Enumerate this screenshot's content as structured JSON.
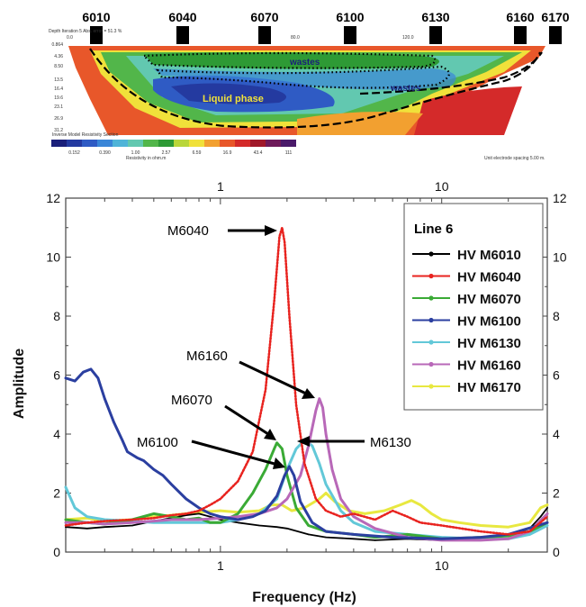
{
  "section": {
    "electrode_labels": [
      "6010",
      "6040",
      "6070",
      "6100",
      "6130",
      "6160",
      "6170"
    ],
    "header_small": "Depth   Iteration 5 Abs. error = 51.3 %",
    "x_ticks": [
      "0.0",
      "80.0",
      "120.0"
    ],
    "depth_ticks": [
      "0.864",
      "4.36",
      "8.50",
      "13.5",
      "16.4",
      "19.6",
      "23.1",
      "26.9",
      "31.2"
    ],
    "zone_labels": {
      "wastes_upper": "wastes",
      "wastes_lower": "wastes",
      "liquid": "Liquid phase"
    },
    "legend_title": "Inverse Model Resistivity Section",
    "legend_values": [
      "0.152",
      "0.390",
      "1.00",
      "2.57",
      "6.59",
      "16.9",
      "43.4",
      "111"
    ],
    "legend_units": "Resistivity in ohm.m",
    "spacing_note": "Unit electrode spacing 5.00 m.",
    "palette": [
      "#1a1f7a",
      "#243aa0",
      "#2f5bc4",
      "#3a86d8",
      "#4fb4d8",
      "#62c8b0",
      "#52b64a",
      "#2e9a35",
      "#b9d63a",
      "#f0e13a",
      "#f2a030",
      "#e8572a",
      "#d42a2a",
      "#a0182a",
      "#6e1a5a",
      "#4a1a6a"
    ]
  },
  "plot": {
    "xlabel": "Frequency (Hz)",
    "ylabel": "Amplitude",
    "y_ticks": [
      "0",
      "2",
      "4",
      "6",
      "8",
      "10",
      "12"
    ],
    "x_ticks_bottom": [
      "1",
      "10"
    ],
    "x_ticks_top": [
      "1",
      "10"
    ],
    "legend_title": "Line 6",
    "annotations": [
      "M6040",
      "M6160",
      "M6070",
      "M6100",
      "M6130"
    ]
  },
  "chart_data": {
    "type": "line",
    "x_scale": "log",
    "xlim": [
      0.2,
      30
    ],
    "ylim": [
      0,
      12
    ],
    "xlabel": "Frequency (Hz)",
    "ylabel": "Amplitude",
    "grid": false,
    "legend_position": "top-right",
    "legend_title": "Line 6",
    "series": [
      {
        "name": "HV M6010",
        "color": "#000000",
        "points": [
          [
            0.2,
            0.85
          ],
          [
            0.25,
            0.8
          ],
          [
            0.3,
            0.85
          ],
          [
            0.4,
            0.9
          ],
          [
            0.5,
            1.05
          ],
          [
            0.6,
            1.15
          ],
          [
            0.7,
            1.25
          ],
          [
            0.8,
            1.3
          ],
          [
            0.9,
            1.2
          ],
          [
            1.0,
            1.1
          ],
          [
            1.2,
            1.0
          ],
          [
            1.5,
            0.9
          ],
          [
            1.8,
            0.85
          ],
          [
            2.0,
            0.8
          ],
          [
            2.5,
            0.6
          ],
          [
            3.0,
            0.5
          ],
          [
            4.0,
            0.45
          ],
          [
            5.0,
            0.4
          ],
          [
            7.0,
            0.45
          ],
          [
            10,
            0.4
          ],
          [
            15,
            0.45
          ],
          [
            20,
            0.55
          ],
          [
            25,
            0.8
          ],
          [
            28,
            1.2
          ],
          [
            30,
            1.5
          ]
        ]
      },
      {
        "name": "HV M6040",
        "color": "#e8231f",
        "points": [
          [
            0.2,
            0.9
          ],
          [
            0.25,
            1.0
          ],
          [
            0.3,
            1.05
          ],
          [
            0.4,
            1.1
          ],
          [
            0.5,
            1.15
          ],
          [
            0.6,
            1.25
          ],
          [
            0.7,
            1.3
          ],
          [
            0.8,
            1.4
          ],
          [
            0.9,
            1.6
          ],
          [
            1.0,
            1.8
          ],
          [
            1.2,
            2.4
          ],
          [
            1.4,
            3.4
          ],
          [
            1.6,
            5.5
          ],
          [
            1.75,
            8.5
          ],
          [
            1.85,
            10.7
          ],
          [
            1.9,
            11.0
          ],
          [
            1.95,
            10.5
          ],
          [
            2.05,
            8.0
          ],
          [
            2.2,
            5.0
          ],
          [
            2.4,
            3.0
          ],
          [
            2.7,
            1.8
          ],
          [
            3.0,
            1.4
          ],
          [
            3.5,
            1.2
          ],
          [
            4.0,
            1.3
          ],
          [
            5.0,
            1.1
          ],
          [
            6.0,
            1.4
          ],
          [
            7.0,
            1.2
          ],
          [
            8.0,
            1.0
          ],
          [
            10,
            0.9
          ],
          [
            15,
            0.7
          ],
          [
            20,
            0.6
          ],
          [
            25,
            0.7
          ],
          [
            30,
            1.2
          ]
        ]
      },
      {
        "name": "HV M6070",
        "color": "#3aaa35",
        "points": [
          [
            0.2,
            1.1
          ],
          [
            0.25,
            1.0
          ],
          [
            0.3,
            0.95
          ],
          [
            0.4,
            1.1
          ],
          [
            0.5,
            1.3
          ],
          [
            0.6,
            1.2
          ],
          [
            0.7,
            1.1
          ],
          [
            0.8,
            1.15
          ],
          [
            0.9,
            1.0
          ],
          [
            1.0,
            1.0
          ],
          [
            1.2,
            1.3
          ],
          [
            1.4,
            2.0
          ],
          [
            1.6,
            2.8
          ],
          [
            1.75,
            3.5
          ],
          [
            1.8,
            3.7
          ],
          [
            1.9,
            3.5
          ],
          [
            2.0,
            2.6
          ],
          [
            2.2,
            1.5
          ],
          [
            2.5,
            0.9
          ],
          [
            3.0,
            0.7
          ],
          [
            4.0,
            0.6
          ],
          [
            5.0,
            0.5
          ],
          [
            7.0,
            0.6
          ],
          [
            10,
            0.45
          ],
          [
            15,
            0.5
          ],
          [
            20,
            0.55
          ],
          [
            25,
            0.7
          ],
          [
            30,
            1.0
          ]
        ]
      },
      {
        "name": "HV M6100",
        "color": "#2b3fa0",
        "points": [
          [
            0.2,
            5.9
          ],
          [
            0.22,
            5.8
          ],
          [
            0.24,
            6.1
          ],
          [
            0.26,
            6.2
          ],
          [
            0.28,
            5.9
          ],
          [
            0.3,
            5.2
          ],
          [
            0.33,
            4.4
          ],
          [
            0.36,
            3.8
          ],
          [
            0.38,
            3.4
          ],
          [
            0.42,
            3.2
          ],
          [
            0.45,
            3.1
          ],
          [
            0.5,
            2.8
          ],
          [
            0.55,
            2.6
          ],
          [
            0.6,
            2.3
          ],
          [
            0.7,
            1.8
          ],
          [
            0.8,
            1.5
          ],
          [
            0.9,
            1.3
          ],
          [
            1.0,
            1.2
          ],
          [
            1.2,
            1.1
          ],
          [
            1.4,
            1.2
          ],
          [
            1.6,
            1.4
          ],
          [
            1.8,
            1.9
          ],
          [
            1.95,
            2.6
          ],
          [
            2.05,
            2.9
          ],
          [
            2.15,
            2.6
          ],
          [
            2.3,
            1.7
          ],
          [
            2.6,
            1.0
          ],
          [
            3.0,
            0.7
          ],
          [
            4.0,
            0.6
          ],
          [
            6.0,
            0.5
          ],
          [
            10,
            0.45
          ],
          [
            15,
            0.5
          ],
          [
            20,
            0.6
          ],
          [
            30,
            1.0
          ]
        ]
      },
      {
        "name": "HV M6130",
        "color": "#62c8d8",
        "points": [
          [
            0.2,
            2.2
          ],
          [
            0.22,
            1.5
          ],
          [
            0.25,
            1.2
          ],
          [
            0.3,
            1.1
          ],
          [
            0.4,
            1.05
          ],
          [
            0.5,
            1.0
          ],
          [
            0.6,
            1.0
          ],
          [
            0.7,
            1.0
          ],
          [
            0.8,
            1.0
          ],
          [
            1.0,
            1.0
          ],
          [
            1.2,
            1.1
          ],
          [
            1.5,
            1.3
          ],
          [
            1.8,
            1.8
          ],
          [
            2.0,
            2.8
          ],
          [
            2.2,
            3.5
          ],
          [
            2.4,
            3.8
          ],
          [
            2.6,
            3.6
          ],
          [
            2.8,
            3.0
          ],
          [
            3.0,
            2.3
          ],
          [
            3.5,
            1.4
          ],
          [
            4.0,
            1.0
          ],
          [
            5.0,
            0.7
          ],
          [
            7.0,
            0.6
          ],
          [
            10,
            0.5
          ],
          [
            15,
            0.45
          ],
          [
            20,
            0.45
          ],
          [
            25,
            0.6
          ],
          [
            30,
            0.9
          ]
        ]
      },
      {
        "name": "HV M6160",
        "color": "#b868b8",
        "points": [
          [
            0.2,
            1.0
          ],
          [
            0.25,
            1.0
          ],
          [
            0.3,
            0.95
          ],
          [
            0.4,
            1.0
          ],
          [
            0.5,
            1.05
          ],
          [
            0.6,
            1.1
          ],
          [
            0.7,
            1.1
          ],
          [
            0.8,
            1.1
          ],
          [
            1.0,
            1.15
          ],
          [
            1.2,
            1.2
          ],
          [
            1.5,
            1.3
          ],
          [
            1.8,
            1.5
          ],
          [
            2.0,
            1.8
          ],
          [
            2.3,
            2.6
          ],
          [
            2.5,
            3.6
          ],
          [
            2.7,
            4.8
          ],
          [
            2.8,
            5.2
          ],
          [
            2.9,
            4.9
          ],
          [
            3.0,
            4.0
          ],
          [
            3.2,
            2.8
          ],
          [
            3.5,
            1.8
          ],
          [
            4.0,
            1.2
          ],
          [
            5.0,
            0.8
          ],
          [
            7.0,
            0.5
          ],
          [
            10,
            0.4
          ],
          [
            15,
            0.4
          ],
          [
            20,
            0.45
          ],
          [
            25,
            0.7
          ],
          [
            30,
            1.3
          ]
        ]
      },
      {
        "name": "HV M6170",
        "color": "#e8e840",
        "points": [
          [
            0.2,
            1.1
          ],
          [
            0.25,
            1.15
          ],
          [
            0.3,
            1.05
          ],
          [
            0.4,
            1.1
          ],
          [
            0.5,
            1.2
          ],
          [
            0.6,
            1.25
          ],
          [
            0.7,
            1.3
          ],
          [
            0.8,
            1.35
          ],
          [
            1.0,
            1.4
          ],
          [
            1.2,
            1.35
          ],
          [
            1.5,
            1.4
          ],
          [
            1.7,
            1.6
          ],
          [
            1.9,
            1.6
          ],
          [
            2.1,
            1.4
          ],
          [
            2.4,
            1.5
          ],
          [
            2.8,
            1.8
          ],
          [
            3.0,
            2.0
          ],
          [
            3.3,
            1.7
          ],
          [
            3.8,
            1.4
          ],
          [
            4.5,
            1.3
          ],
          [
            5.5,
            1.4
          ],
          [
            6.5,
            1.6
          ],
          [
            7.3,
            1.75
          ],
          [
            8.0,
            1.6
          ],
          [
            9.0,
            1.3
          ],
          [
            10,
            1.1
          ],
          [
            12,
            1.0
          ],
          [
            15,
            0.9
          ],
          [
            20,
            0.85
          ],
          [
            25,
            1.0
          ],
          [
            28,
            1.5
          ],
          [
            30,
            1.6
          ]
        ]
      }
    ]
  }
}
